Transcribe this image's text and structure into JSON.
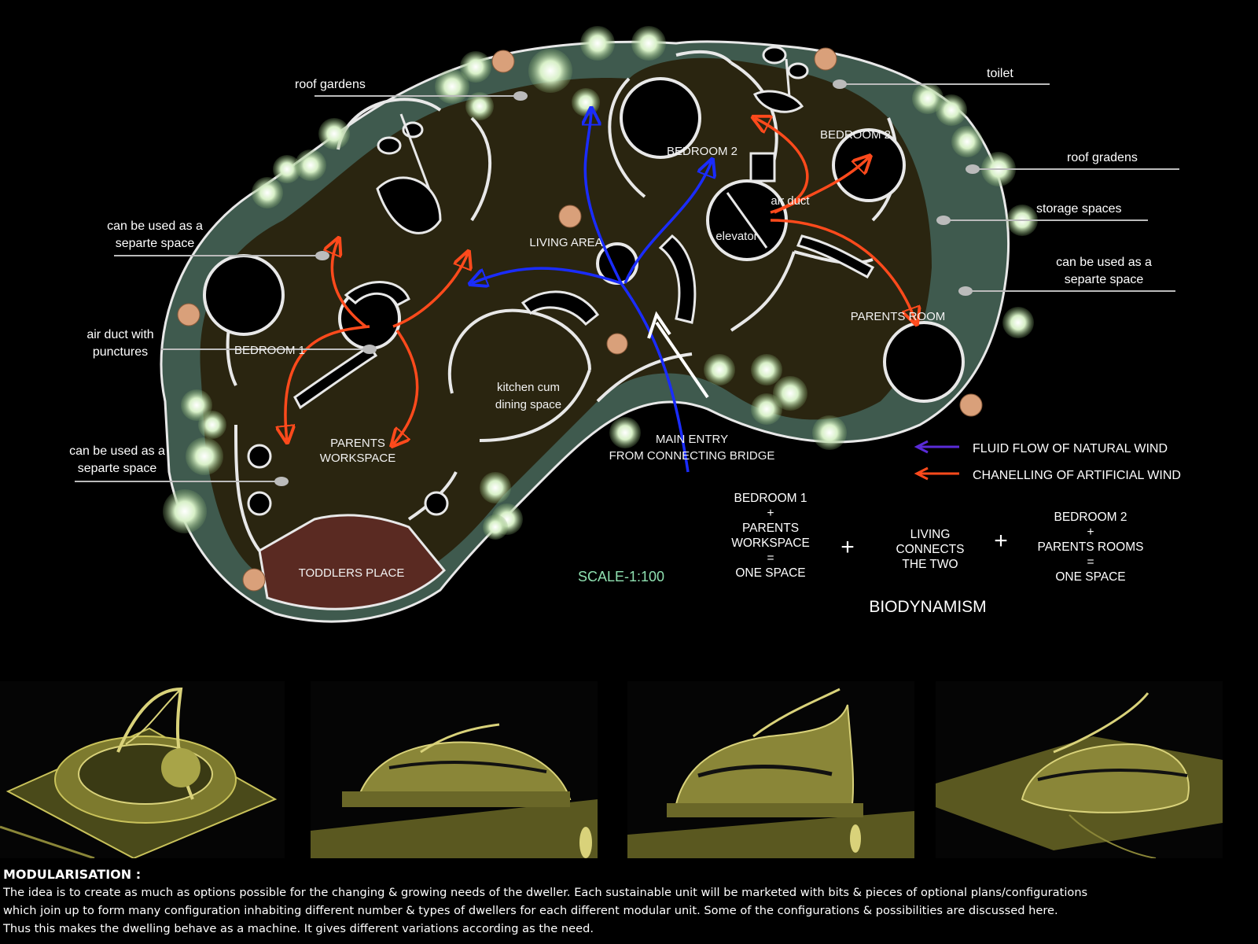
{
  "labels": {
    "roof_gardens_left": "roof gardens",
    "toilet": "toilet",
    "roof_gardens_right": "roof gradens",
    "storage_spaces": "storage spaces",
    "separate_left_1_l1": "can be used as a",
    "separate_left_1_l2": "separte space",
    "separate_right_l1": "can be used as a",
    "separate_right_l2": "separte space",
    "air_duct_punctures_l1": "air duct with",
    "air_duct_punctures_l2": "punctures",
    "separate_left_2_l1": "can be used as a",
    "separate_left_2_l2": "separte space"
  },
  "rooms": {
    "bedroom_2_center": "BEDROOM 2",
    "bedroom_2_right": "BEDROOM 2",
    "air_duct": "air duct",
    "elevator": "elevator",
    "living_area": "LIVING AREA",
    "parents_room": "PARENTS ROOM",
    "bedroom_1": "BEDROOM 1",
    "kitchen_l1": "kitchen cum",
    "kitchen_l2": "dining space",
    "parents_workspace_l1": "PARENTS",
    "parents_workspace_l2": "WORKSPACE",
    "toddlers_place": "TODDLERS PLACE",
    "main_entry_l1": "MAIN ENTRY",
    "main_entry_l2": "FROM CONNECTING BRIDGE"
  },
  "legend": {
    "natural_wind": "FLUID FLOW OF NATURAL WIND",
    "artificial_wind": "CHANELLING OF ARTIFICIAL WIND",
    "natural_color": "#5a2bd8",
    "artificial_color": "#ff4a1c"
  },
  "scale": "SCALE-1:100",
  "equation": {
    "group1": [
      "BEDROOM 1",
      "+",
      "PARENTS",
      "WORKSPACE",
      "=",
      "ONE SPACE"
    ],
    "plus": "+",
    "group2": [
      "LIVING",
      "CONNECTS",
      "THE TWO"
    ],
    "group3": [
      "BEDROOM 2",
      "+",
      "PARENTS ROOMS",
      "=",
      "ONE SPACE"
    ],
    "title": "BIODYNAMISM"
  },
  "description": {
    "heading": "MODULARISATION :",
    "lines": [
      "The idea is to create as much as options possible for the changing & growing needs of the dweller. Each sustainable unit will be marketed with bits & pieces of optional plans/configurations",
      "which join up to form many configuration inhabiting different number & types of dwellers for each different modular unit. Some of the configurations & possibilities are discussed here.",
      "Thus this makes the dwelling behave as a machine. It gives different variations according as the need."
    ]
  },
  "colors": {
    "floor": "#2a2510",
    "garden": "#3f5a4e",
    "wall": "#e8e8e8",
    "column": "#d9a07a",
    "toddler": "#5a2a22",
    "scale_text": "#8fe0b0",
    "render": "#c9c25a"
  }
}
